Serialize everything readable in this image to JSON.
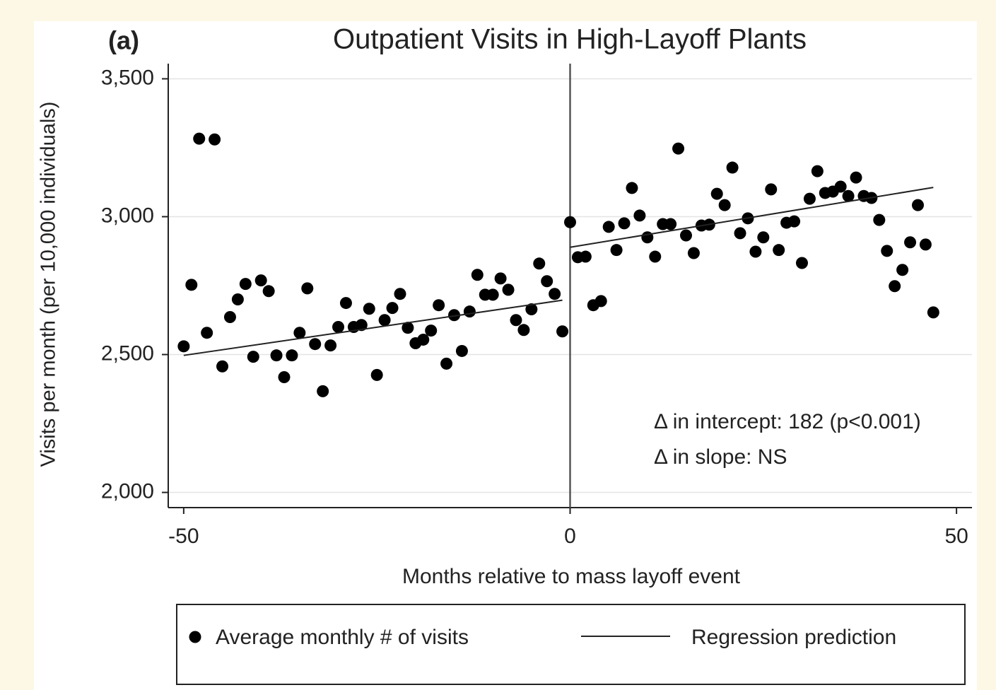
{
  "chart_data": {
    "type": "scatter",
    "panel_label": "(a)",
    "title": "Outpatient Visits in High-Layoff Plants",
    "x_label": "Months relative to mass layoff event",
    "y_label": "Visits per month (per 10,000 individuals)",
    "annotations": [
      "Δ in intercept: 182 (p<0.001)",
      "Δ in slope: NS"
    ],
    "xlim": [
      -52,
      52
    ],
    "ylim": [
      1945,
      3555
    ],
    "xticks": [
      -50,
      0,
      50
    ],
    "yticks": [
      {
        "value": 2000,
        "label": "2,000"
      },
      {
        "value": 2500,
        "label": "2,500"
      },
      {
        "value": 3000,
        "label": "3,000"
      },
      {
        "value": 3500,
        "label": "3,500"
      }
    ],
    "grid": true,
    "vline": 0,
    "series": [
      {
        "name": "Average monthly # of visits",
        "color": "#000000",
        "x": [
          -50,
          -49,
          -48,
          -47,
          -46,
          -45,
          -44,
          -43,
          -42,
          -41,
          -40,
          -39,
          -38,
          -37,
          -36,
          -35,
          -34,
          -33,
          -32,
          -31,
          -30,
          -29,
          -28,
          -27,
          -26,
          -25,
          -24,
          -23,
          -22,
          -21,
          -20,
          -19,
          -18,
          -17,
          -16,
          -15,
          -14,
          -13,
          -12,
          -11,
          -10,
          -9,
          -8,
          -7,
          -6,
          -5,
          -4,
          -3,
          -2,
          -1,
          0,
          1,
          2,
          3,
          4,
          5,
          6,
          7,
          8,
          9,
          10,
          11,
          12,
          13,
          14,
          15,
          16,
          17,
          18,
          19,
          20,
          21,
          22,
          23,
          24,
          25,
          26,
          27,
          28,
          29,
          30,
          31,
          32,
          33,
          34,
          35,
          36,
          37,
          38,
          39,
          40,
          41,
          42,
          43,
          44,
          45,
          46,
          47
        ],
        "values": [
          2530,
          2753,
          3283,
          2579,
          3280,
          2457,
          2636,
          2700,
          2756,
          2492,
          2769,
          2730,
          2497,
          2418,
          2497,
          2579,
          2740,
          2538,
          2367,
          2533,
          2600,
          2687,
          2600,
          2607,
          2666,
          2426,
          2625,
          2669,
          2720,
          2597,
          2541,
          2554,
          2587,
          2679,
          2467,
          2643,
          2513,
          2656,
          2789,
          2717,
          2717,
          2776,
          2735,
          2625,
          2589,
          2664,
          2830,
          2766,
          2720,
          2584,
          2980,
          2853,
          2855,
          2679,
          2694,
          2963,
          2879,
          2976,
          3104,
          3004,
          2925,
          2855,
          2973,
          2973,
          3247,
          2932,
          2868,
          2968,
          2971,
          3083,
          3042,
          3178,
          2940,
          2994,
          2873,
          2925,
          3099,
          2879,
          2978,
          2983,
          2832,
          3065,
          3165,
          3086,
          3091,
          3109,
          3075,
          3142,
          3075,
          3068,
          2988,
          2876,
          2748,
          2807,
          2907,
          3042,
          2899,
          2653
        ]
      },
      {
        "name": "Regression prediction",
        "color": "#222222",
        "segments": [
          {
            "x": [
              -50,
              -1
            ],
            "values": [
              2497,
              2697
            ]
          },
          {
            "x": [
              0,
              47
            ],
            "values": [
              2889,
              3106
            ]
          }
        ]
      }
    ]
  }
}
